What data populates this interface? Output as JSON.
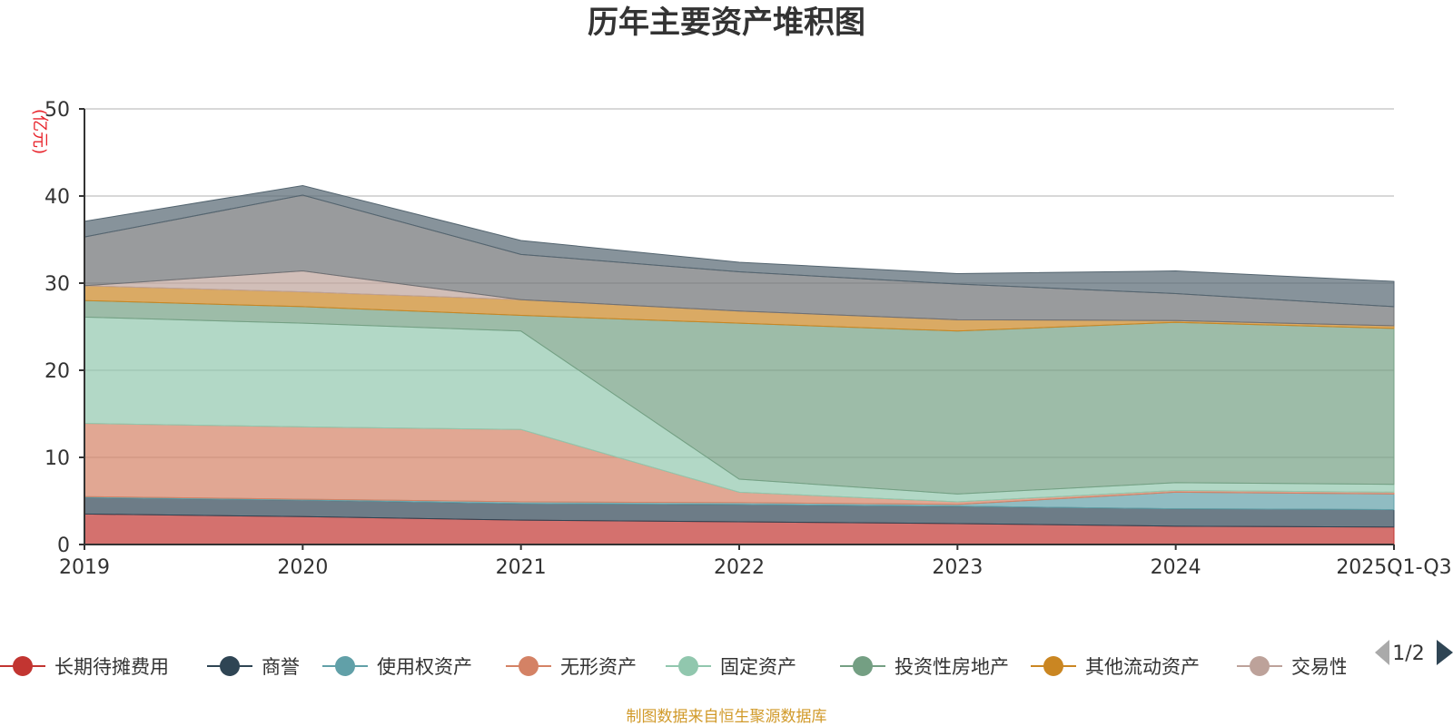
{
  "chart_data": {
    "type": "area",
    "title": "历年主要资产堆积图",
    "y_unit": "(亿元)",
    "categories": [
      "2019",
      "2020",
      "2021",
      "2022",
      "2023",
      "2024",
      "2025Q1-Q3"
    ],
    "ylim": [
      0,
      50
    ],
    "y_ticks": [
      0,
      10,
      20,
      30,
      40,
      50
    ],
    "grid": true,
    "stacked": true,
    "series": [
      {
        "name": "长期待摊费用",
        "color": "#c23531",
        "values": [
          3.5,
          3.2,
          2.8,
          2.6,
          2.4,
          2.1,
          2.0
        ]
      },
      {
        "name": "商誉",
        "color": "#2f4554",
        "values": [
          1.9,
          1.9,
          1.9,
          2.0,
          2.0,
          2.0,
          2.0
        ]
      },
      {
        "name": "使用权资产",
        "color": "#61a0a8",
        "values": [
          0.1,
          0.1,
          0.2,
          0.2,
          0.2,
          1.9,
          1.8
        ]
      },
      {
        "name": "无形资产",
        "color": "#d48265",
        "values": [
          8.4,
          8.3,
          8.3,
          1.2,
          0.3,
          0.2,
          0.2
        ]
      },
      {
        "name": "固定资产",
        "color": "#91c7ae",
        "values": [
          12.2,
          11.9,
          11.3,
          1.5,
          0.9,
          0.9,
          0.9
        ]
      },
      {
        "name": "投资性房地产",
        "color": "#749f83",
        "values": [
          1.9,
          1.9,
          1.8,
          17.9,
          18.7,
          18.4,
          17.9
        ]
      },
      {
        "name": "其他流动资产",
        "color": "#ca8622",
        "values": [
          1.7,
          1.7,
          1.8,
          1.4,
          1.3,
          0.2,
          0.3
        ]
      },
      {
        "name": "交易性金融资产",
        "color": "#bda29a",
        "values": [
          0.0,
          2.4,
          0.0,
          0.0,
          0.0,
          0.0,
          0.0
        ]
      },
      {
        "name": "",
        "color": "#6e7074",
        "values": [
          5.6,
          8.7,
          5.2,
          4.5,
          4.1,
          3.1,
          2.2
        ]
      },
      {
        "name": "",
        "color": "#546570",
        "values": [
          1.8,
          1.1,
          1.6,
          1.1,
          1.2,
          2.6,
          2.9
        ]
      }
    ],
    "legend_visible": [
      "长期待摊费用",
      "商誉",
      "使用权资产",
      "无形资产",
      "固定资产",
      "投资性房地产",
      "其他流动资产",
      "交易性"
    ],
    "legend_page": "1/2",
    "source": "制图数据来自恒生聚源数据库"
  }
}
